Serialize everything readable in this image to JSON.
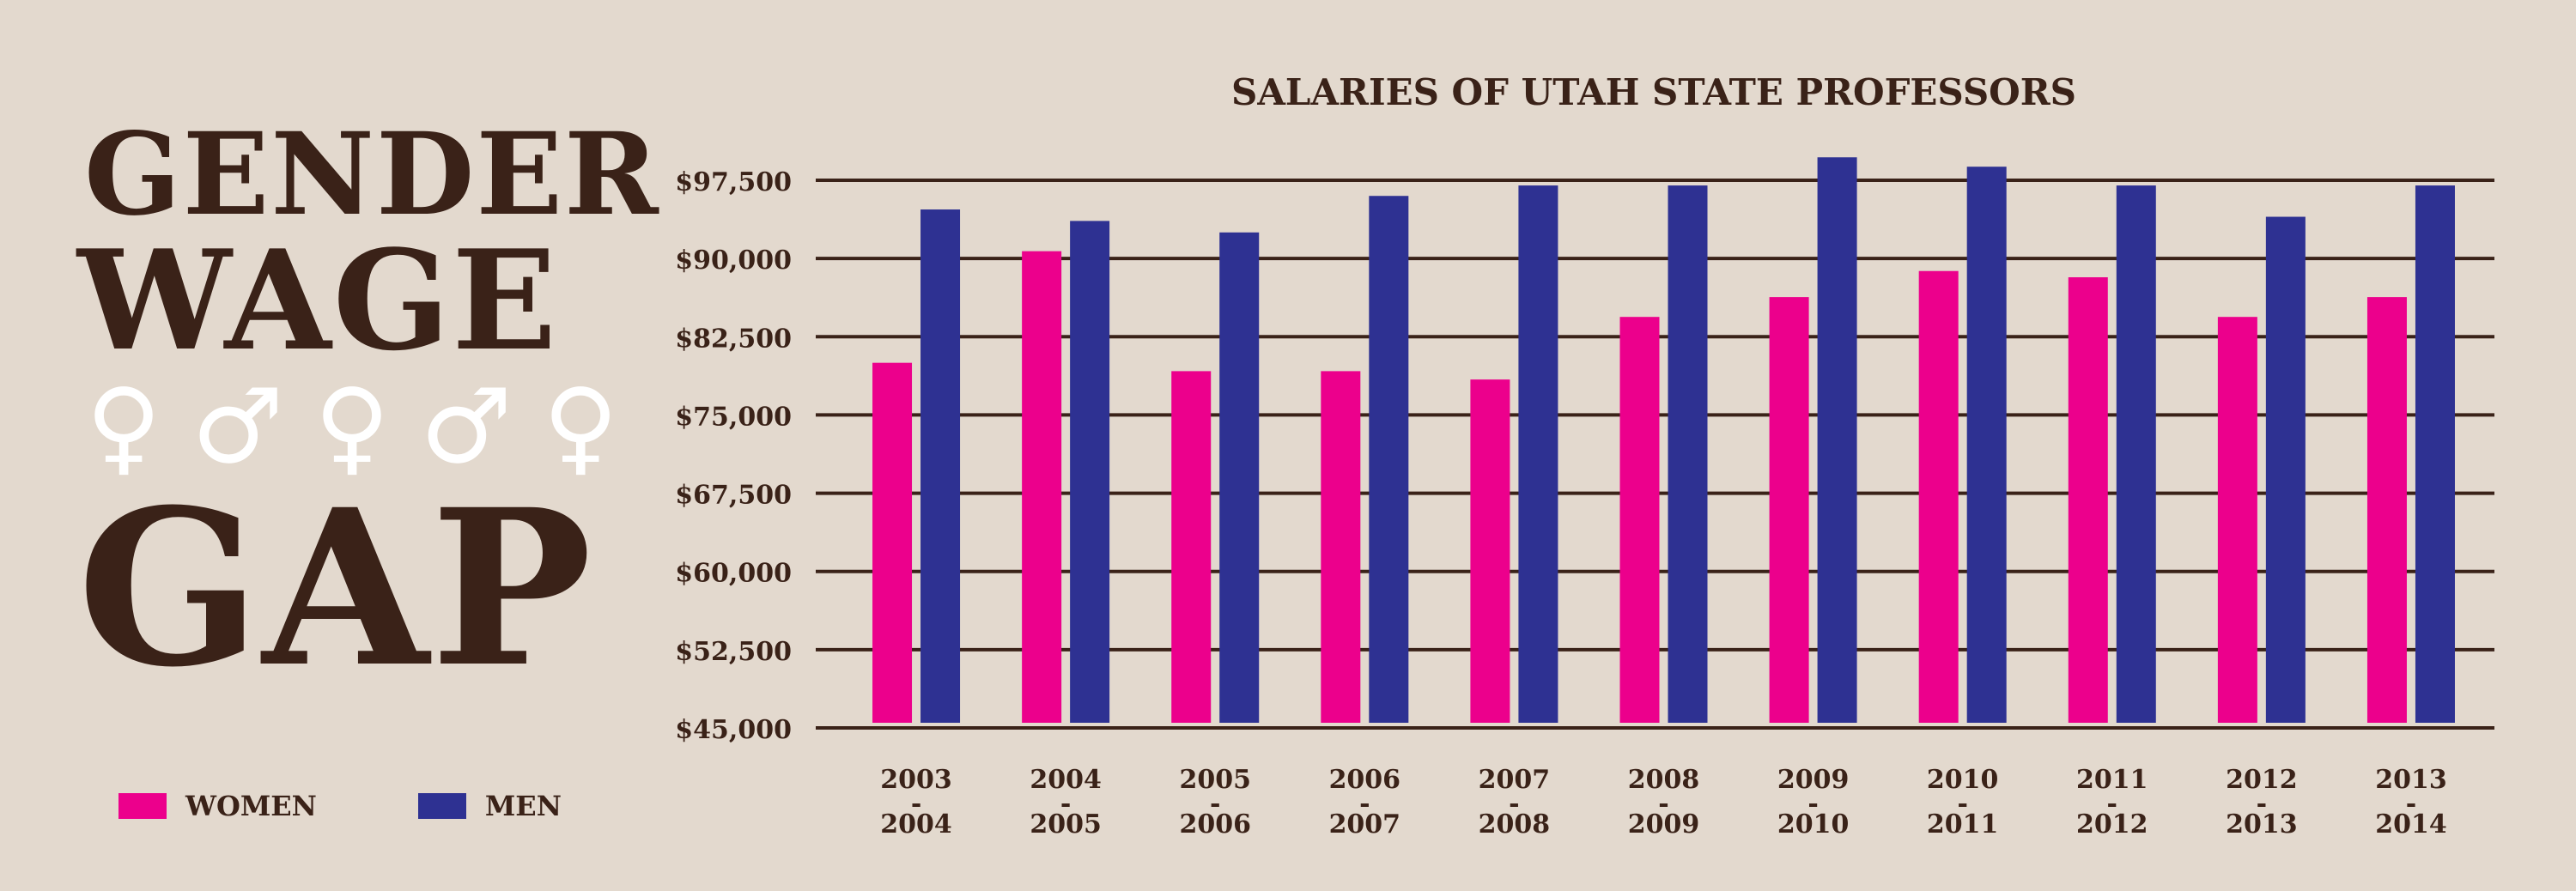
{
  "headline": {
    "line1": "GENDER",
    "line2": "WAGE",
    "line3": "GAP"
  },
  "symbols": [
    "♀",
    "♂",
    "♀",
    "♂",
    "♀"
  ],
  "legend": [
    {
      "label": "WOMEN",
      "color": "#ec008c"
    },
    {
      "label": "MEN",
      "color": "#2e3192"
    }
  ],
  "chart_data": {
    "type": "bar",
    "title": "SALARIES OF UTAH STATE PROFESSORS",
    "categories": [
      [
        "2003",
        "-",
        "2004"
      ],
      [
        "2004",
        "-",
        "2005"
      ],
      [
        "2005",
        "-",
        "2006"
      ],
      [
        "2006",
        "-",
        "2007"
      ],
      [
        "2007",
        "-",
        "2008"
      ],
      [
        "2008",
        "-",
        "2009"
      ],
      [
        "2009",
        "-",
        "2010"
      ],
      [
        "2010",
        "-",
        "2011"
      ],
      [
        "2011",
        "-",
        "2012"
      ],
      [
        "2012",
        "-",
        "2013"
      ],
      [
        "2013",
        "-",
        "2014"
      ]
    ],
    "series": [
      {
        "name": "WOMEN",
        "color": "#ec008c",
        "values": [
          80000,
          90700,
          79200,
          79200,
          78400,
          84400,
          86300,
          88800,
          88200,
          84400,
          86300
        ]
      },
      {
        "name": "MEN",
        "color": "#2e3192",
        "values": [
          94700,
          93600,
          92500,
          96000,
          97000,
          97000,
          99700,
          98800,
          97000,
          94000,
          97000
        ]
      }
    ],
    "yticks": [
      "$45,000",
      "$52,500",
      "$60,000",
      "$67,500",
      "$75,000",
      "$82,500",
      "$90,000",
      "$97,500"
    ],
    "ytick_values": [
      45000,
      52500,
      60000,
      67500,
      75000,
      82500,
      90000,
      97500
    ],
    "ylim": [
      45000,
      97500
    ],
    "grid": true,
    "legend_position": "bottom-left"
  }
}
